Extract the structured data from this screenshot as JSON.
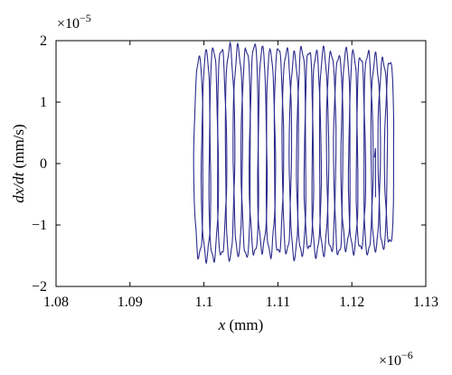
{
  "chart_data": {
    "type": "line",
    "title": "",
    "xlabel_italic": "x",
    "xlabel_unit": " (mm)",
    "ylabel_italic": "dx/dt",
    "ylabel_unit": " (mm/s)",
    "x_multiplier": "×10",
    "x_multiplier_exp": "−6",
    "y_multiplier": "×10",
    "y_multiplier_exp": "−5",
    "xlim": [
      1.08,
      1.13
    ],
    "ylim": [
      -2,
      2
    ],
    "x_ticks": [
      1.08,
      1.09,
      1.1,
      1.11,
      1.12,
      1.13
    ],
    "x_tick_labels": [
      "1.08",
      "1.09",
      "1.1",
      "1.11",
      "1.12",
      "1.13"
    ],
    "y_ticks": [
      2,
      1,
      0,
      -1,
      -2
    ],
    "y_tick_labels": [
      "2",
      "1",
      "0",
      "−1",
      "−2"
    ],
    "grid": false,
    "legend": "none",
    "line_color": "#2b2b8c",
    "series": [
      {
        "kind": "phase-portrait",
        "x_range": [
          1.0985,
          1.1258
        ],
        "y_range": [
          -1.58,
          1.94
        ],
        "loop_centers": [
          1.0993,
          1.1003,
          1.1013,
          1.1024,
          1.1035,
          1.1046,
          1.1057,
          1.1068,
          1.1079,
          1.109,
          1.1101,
          1.1112,
          1.1122,
          1.1132,
          1.1142,
          1.1152,
          1.1162,
          1.1172,
          1.1182,
          1.1192,
          1.1202,
          1.1212,
          1.1222,
          1.1232,
          1.1242,
          1.1251
        ],
        "loop_peaks": [
          1.72,
          1.8,
          1.86,
          1.88,
          1.92,
          1.9,
          1.88,
          1.94,
          1.86,
          1.82,
          1.9,
          1.86,
          1.78,
          1.88,
          1.84,
          1.8,
          1.86,
          1.82,
          1.76,
          1.84,
          1.8,
          1.74,
          1.82,
          1.76,
          1.7,
          1.68
        ],
        "loop_troughs": [
          -1.52,
          -1.56,
          -1.58,
          -1.5,
          -1.54,
          -1.46,
          -1.52,
          -1.48,
          -1.42,
          -1.5,
          -1.46,
          -1.44,
          -1.52,
          -1.48,
          -1.4,
          -1.5,
          -1.46,
          -1.42,
          -1.48,
          -1.38,
          -1.44,
          -1.4,
          -1.46,
          -1.38,
          -1.36,
          -1.3
        ]
      }
    ]
  }
}
